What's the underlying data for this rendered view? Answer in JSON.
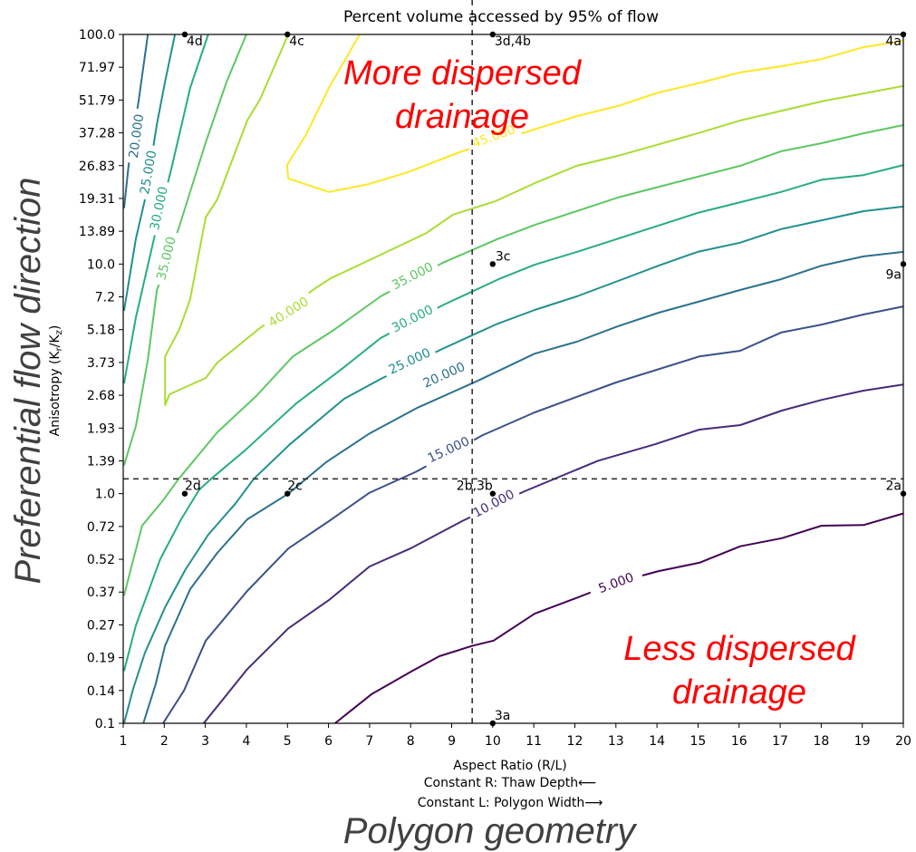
{
  "chart_data": {
    "type": "contour",
    "title": "Percent volume accessed by 95% of flow",
    "xlabel": "Aspect Ratio (R/L)",
    "xlabel_notes": [
      "Constant R: Thaw Depth⟵",
      "Constant L: Polygon Width⟶"
    ],
    "ylabel": "Anisotropy (K",
    "ylabel_sub1": "r",
    "ylabel_mid": "/K",
    "ylabel_sub2": "z",
    "ylabel_end": ")",
    "xlim": [
      1,
      20
    ],
    "ylim": [
      0.1,
      100
    ],
    "yscale": "log",
    "x_ticks": [
      "1",
      "2",
      "3",
      "4",
      "5",
      "6",
      "7",
      "8",
      "9",
      "10",
      "11",
      "12",
      "13",
      "14",
      "15",
      "16",
      "17",
      "18",
      "19",
      "20"
    ],
    "y_ticks": [
      "100.0",
      "71.97",
      "51.79",
      "37.28",
      "26.83",
      "19.31",
      "13.89",
      "10.0",
      "7.2",
      "5.18",
      "3.73",
      "2.68",
      "1.93",
      "1.39",
      "1.0",
      "0.72",
      "0.52",
      "0.37",
      "0.27",
      "0.19",
      "0.14",
      "0.1"
    ],
    "reference_lines": {
      "vertical_x": 9.5,
      "horizontal_y": 1.16
    },
    "contours": [
      {
        "level": 5,
        "label": "5.000",
        "color": "#440154",
        "label_at": [
          13.0,
          0.41
        ],
        "pieces": [
          [
            [
              6.16,
              0.1
            ],
            [
              7.05,
              0.134
            ],
            [
              8.04,
              0.169
            ],
            [
              8.7,
              0.196
            ],
            [
              9.52,
              0.218
            ],
            [
              10.02,
              0.229
            ],
            [
              11.02,
              0.3
            ],
            [
              12.01,
              0.35
            ],
            [
              13.0,
              0.41
            ],
            [
              14.04,
              0.46
            ],
            [
              15.03,
              0.5
            ],
            [
              16.03,
              0.59
            ],
            [
              17.04,
              0.64
            ],
            [
              18.01,
              0.725
            ],
            [
              19.03,
              0.73
            ],
            [
              20,
              0.82
            ]
          ]
        ]
      },
      {
        "level": 10,
        "label": "10.000",
        "color": "#472c7a",
        "label_at": [
          10.02,
          0.909
        ],
        "pieces": [
          [
            [
              2.96,
              0.1
            ],
            [
              4.02,
              0.172
            ],
            [
              5.02,
              0.259
            ],
            [
              6.01,
              0.344
            ],
            [
              7.0,
              0.482
            ],
            [
              7.99,
              0.577
            ],
            [
              9.25,
              0.759
            ],
            [
              10.75,
              1.02
            ],
            [
              12.56,
              1.39
            ],
            [
              13.95,
              1.64
            ],
            [
              15.03,
              1.9
            ],
            [
              16.03,
              1.99
            ],
            [
              17.04,
              2.3
            ],
            [
              18.01,
              2.56
            ],
            [
              19.03,
              2.81
            ],
            [
              20,
              2.99
            ]
          ]
        ]
      },
      {
        "level": 15,
        "label": "15.000",
        "color": "#3b518b",
        "label_at": [
          8.92,
          1.56
        ],
        "pieces": [
          [
            [
              1.97,
              0.1
            ],
            [
              2.48,
              0.139
            ],
            [
              3.01,
              0.229
            ],
            [
              4.02,
              0.377
            ],
            [
              5.02,
              0.577
            ],
            [
              6.01,
              0.759
            ],
            [
              7.0,
              1.01
            ],
            [
              8.15,
              1.25
            ],
            [
              9.76,
              1.8
            ],
            [
              11.02,
              2.26
            ],
            [
              13.0,
              3.05
            ],
            [
              15.03,
              3.96
            ],
            [
              16.03,
              4.19
            ],
            [
              17.02,
              5.03
            ],
            [
              18.01,
              5.45
            ],
            [
              19.03,
              6.03
            ],
            [
              20,
              6.54
            ]
          ]
        ]
      },
      {
        "level": 20,
        "label": "20.000",
        "color": "#2c718e",
        "label_at": [
          8.81,
          3.3
        ],
        "label_at_2": [
          1.31,
          36.1
        ],
        "pieces": [
          [
            [
              1.49,
              0.1
            ],
            [
              1.79,
              0.148
            ],
            [
              2.02,
              0.218
            ],
            [
              2.63,
              0.384
            ],
            [
              3.29,
              0.552
            ],
            [
              4.02,
              0.773
            ],
            [
              5.02,
              1.0
            ],
            [
              5.94,
              1.37
            ],
            [
              7.0,
              1.83
            ],
            [
              8.15,
              2.36
            ],
            [
              9.63,
              3.1
            ],
            [
              11.02,
              4.07
            ],
            [
              12.05,
              4.59
            ],
            [
              13.05,
              5.36
            ],
            [
              14.04,
              6.14
            ],
            [
              14.99,
              6.84
            ],
            [
              16.03,
              7.71
            ],
            [
              17.02,
              8.59
            ],
            [
              18.01,
              9.84
            ],
            [
              19.03,
              10.8
            ],
            [
              20,
              11.3
            ]
          ],
          [
            [
              1.6,
              100
            ],
            [
              1.38,
              52.0
            ],
            [
              1.13,
              26.8
            ],
            [
              1.02,
              17.5
            ]
          ]
        ]
      },
      {
        "level": 25,
        "label": "25.000",
        "color": "#21908d",
        "label_at": [
          7.97,
          3.79
        ],
        "label_at_2": [
          1.6,
          25.1
        ],
        "pieces": [
          [
            [
              1.02,
              0.1
            ],
            [
              1.24,
              0.141
            ],
            [
              1.53,
              0.203
            ],
            [
              2.02,
              0.32
            ],
            [
              2.52,
              0.469
            ],
            [
              3.07,
              0.662
            ],
            [
              3.74,
              0.909
            ],
            [
              4.18,
              1.16
            ],
            [
              5.06,
              1.64
            ],
            [
              6.38,
              2.59
            ],
            [
              7.27,
              3.16
            ],
            [
              8.77,
              4.27
            ],
            [
              10.07,
              5.45
            ],
            [
              11.02,
              6.31
            ],
            [
              12.05,
              7.23
            ],
            [
              13.05,
              8.44
            ],
            [
              14.04,
              9.84
            ],
            [
              14.99,
              11.3
            ],
            [
              16.03,
              12.4
            ],
            [
              17.02,
              14.2
            ],
            [
              18.01,
              15.5
            ],
            [
              19.03,
              17.0
            ],
            [
              20,
              17.8
            ]
          ],
          [
            [
              2.26,
              100
            ],
            [
              2.02,
              62.3
            ],
            [
              1.82,
              40.7
            ],
            [
              1.53,
              19.1
            ],
            [
              1.31,
              12.9
            ],
            [
              1.02,
              6.25
            ]
          ]
        ]
      },
      {
        "level": 30,
        "label": "30.000",
        "color": "#27ad81",
        "label_at": [
          8.04,
          5.8
        ],
        "label_at_2": [
          1.86,
          17.5
        ],
        "pieces": [
          [
            [
              1.02,
              0.169
            ],
            [
              1.31,
              0.267
            ],
            [
              1.9,
              0.518
            ],
            [
              2.41,
              0.773
            ],
            [
              2.85,
              1.04
            ],
            [
              3.14,
              1.16
            ],
            [
              3.96,
              1.54
            ],
            [
              5.21,
              2.47
            ],
            [
              6.32,
              3.49
            ],
            [
              7.27,
              4.76
            ],
            [
              8.77,
              6.6
            ],
            [
              10.14,
              8.59
            ],
            [
              11.02,
              9.93
            ],
            [
              12.05,
              11.3
            ],
            [
              13.05,
              12.9
            ],
            [
              14.99,
              16.7
            ],
            [
              16.03,
              18.6
            ],
            [
              17.02,
              20.6
            ],
            [
              18.01,
              23.3
            ],
            [
              19.03,
              24.4
            ],
            [
              20,
              27.0
            ]
          ],
          [
            [
              3.07,
              100
            ],
            [
              2.63,
              58.5
            ],
            [
              2.19,
              26.8
            ],
            [
              1.75,
              12.9
            ],
            [
              1.31,
              5.86
            ],
            [
              1.02,
              3.02
            ]
          ]
        ]
      },
      {
        "level": 35,
        "label": "35.000",
        "color": "#5cc863",
        "label_at": [
          8.04,
          8.9
        ],
        "label_at_2": [
          2.04,
          10.6
        ],
        "pieces": [
          [
            [
              1.02,
              0.36
            ],
            [
              1.46,
              0.725
            ],
            [
              1.97,
              0.935
            ],
            [
              2.35,
              1.16
            ],
            [
              3.29,
              1.85
            ],
            [
              4.24,
              2.66
            ],
            [
              5.13,
              3.96
            ],
            [
              6.16,
              5.21
            ],
            [
              7.27,
              7.23
            ],
            [
              8.77,
              10.1
            ],
            [
              10.14,
              12.9
            ],
            [
              11.02,
              14.8
            ],
            [
              13.05,
              19.5
            ],
            [
              14.99,
              24.0
            ],
            [
              16.03,
              26.8
            ],
            [
              17.02,
              31.0
            ],
            [
              18.01,
              33.6
            ],
            [
              19.03,
              37.1
            ],
            [
              20,
              40.3
            ]
          ],
          [
            [
              4.0,
              100
            ],
            [
              3.52,
              62.3
            ],
            [
              3.01,
              33.9
            ],
            [
              2.35,
              14.3
            ],
            [
              1.82,
              7.71
            ],
            [
              1.6,
              3.83
            ],
            [
              1.31,
              1.97
            ],
            [
              1.02,
              1.33
            ]
          ]
        ]
      },
      {
        "level": 40,
        "label": "40.000",
        "color": "#aadc32",
        "label_at": [
          5.02,
          6.2
        ],
        "pieces": [
          [
            [
              5.02,
              100
            ],
            [
              4.33,
              52.0
            ],
            [
              4.02,
              42.2
            ],
            [
              3.29,
              19.1
            ],
            [
              3.01,
              16.0
            ],
            [
              2.63,
              7.03
            ],
            [
              2.37,
              5.21
            ],
            [
              2.02,
              3.96
            ],
            [
              2.02,
              2.43
            ],
            [
              2.13,
              2.71
            ],
            [
              3.01,
              3.19
            ],
            [
              3.29,
              3.72
            ],
            [
              4.33,
              5.26
            ],
            [
              5.68,
              7.85
            ],
            [
              6.05,
              8.66
            ],
            [
              8.37,
              13.6
            ],
            [
              9.03,
              16.4
            ],
            [
              10.07,
              18.8
            ],
            [
              11.02,
              22.5
            ],
            [
              12.05,
              26.8
            ],
            [
              13.05,
              29.6
            ],
            [
              14.99,
              37.1
            ],
            [
              16.03,
              42.2
            ],
            [
              18.01,
              51.1
            ],
            [
              20,
              59.6
            ]
          ]
        ]
      },
      {
        "level": 45,
        "label": "45.000",
        "color": "#fde725",
        "label_at": [
          10.02,
          36.1
        ],
        "pieces": [
          [
            [
              6.76,
              100
            ],
            [
              6.01,
              58.5
            ],
            [
              5.46,
              36.8
            ],
            [
              4.99,
              27.0
            ],
            [
              5.02,
              23.6
            ],
            [
              6.01,
              20.6
            ],
            [
              6.98,
              22.3
            ],
            [
              7.93,
              25.1
            ],
            [
              9.25,
              31.0
            ],
            [
              10.86,
              37.8
            ],
            [
              12.05,
              44.1
            ],
            [
              13.05,
              48.8
            ],
            [
              14.04,
              55.9
            ],
            [
              14.99,
              61.2
            ],
            [
              16.03,
              68.3
            ],
            [
              17.02,
              72.7
            ],
            [
              18.01,
              78.1
            ],
            [
              19.03,
              88.0
            ],
            [
              20,
              93.8
            ]
          ]
        ]
      }
    ],
    "points": [
      {
        "label": "4d",
        "x": 2.5,
        "y": 100
      },
      {
        "label": "4c",
        "x": 5,
        "y": 100
      },
      {
        "label": "3d,4b",
        "x": 10,
        "y": 100
      },
      {
        "label": "4a",
        "x": 20,
        "y": 100
      },
      {
        "label": "3c",
        "x": 10,
        "y": 10
      },
      {
        "label": "9a",
        "x": 20,
        "y": 10
      },
      {
        "label": "2d",
        "x": 2.5,
        "y": 1
      },
      {
        "label": "2c",
        "x": 5,
        "y": 1
      },
      {
        "label": "2b,3b",
        "x": 10,
        "y": 1
      },
      {
        "label": "2a",
        "x": 20,
        "y": 1
      },
      {
        "label": "3a",
        "x": 10,
        "y": 0.1
      }
    ],
    "annotations": {
      "top_line1": "More dispersed",
      "top_line2": "drainage",
      "bottom_line1": "Less dispersed",
      "bottom_line2": "drainage",
      "y_big_label": "Preferential flow direction",
      "x_big_label": "Polygon geometry",
      "annotation_color": "#ff0000"
    }
  }
}
